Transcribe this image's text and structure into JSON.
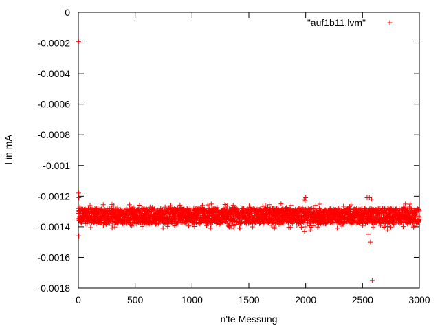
{
  "chart_data": {
    "type": "scatter",
    "title": "",
    "xlabel": "n'te Messung",
    "ylabel": "I in mA",
    "xlim": [
      0,
      3000
    ],
    "ylim": [
      -0.0018,
      0
    ],
    "x_ticks": [
      0,
      500,
      1000,
      1500,
      2000,
      2500,
      3000
    ],
    "x_tick_labels": [
      "0",
      "500",
      "1000",
      "1500",
      "2000",
      "2500",
      "3000"
    ],
    "y_ticks": [
      0,
      -0.0002,
      -0.0004,
      -0.0006,
      -0.0008,
      -0.001,
      -0.0012,
      -0.0014,
      -0.0016,
      -0.0018
    ],
    "y_tick_labels": [
      "0",
      "-0.0002",
      "-0.0004",
      "-0.0006",
      "-0.0008",
      "-0.001",
      "-0.0012",
      "-0.0014",
      "-0.0016",
      "-0.0018"
    ],
    "grid": false,
    "legend_position": "top-right",
    "series": [
      {
        "name": "\"auf1b11.lvm\"",
        "marker": "+",
        "color": "#ff0000",
        "band": {
          "x_range": [
            0,
            3000
          ],
          "dense_y_range": [
            -0.00138,
            -0.00128
          ],
          "sparse_y_range": [
            -0.00141,
            -0.00125
          ]
        },
        "points": [
          {
            "x": 2,
            "y": -0.00019
          },
          {
            "x": 3,
            "y": -0.00118
          },
          {
            "x": 5,
            "y": -0.00121
          },
          {
            "x": 4,
            "y": -0.00146
          },
          {
            "x": 1985,
            "y": -0.00122
          },
          {
            "x": 1995,
            "y": -0.00123
          },
          {
            "x": 2000,
            "y": -0.00121
          },
          {
            "x": 1990,
            "y": -0.00143
          },
          {
            "x": 2040,
            "y": -0.00142
          },
          {
            "x": 2540,
            "y": -0.00121
          },
          {
            "x": 2560,
            "y": -0.00121
          },
          {
            "x": 2580,
            "y": -0.00122
          },
          {
            "x": 2550,
            "y": -0.00145
          },
          {
            "x": 2570,
            "y": -0.0015
          },
          {
            "x": 2585,
            "y": -0.00175
          },
          {
            "x": 2720,
            "y": -0.00142
          },
          {
            "x": 1725,
            "y": -0.00141
          }
        ]
      }
    ]
  }
}
